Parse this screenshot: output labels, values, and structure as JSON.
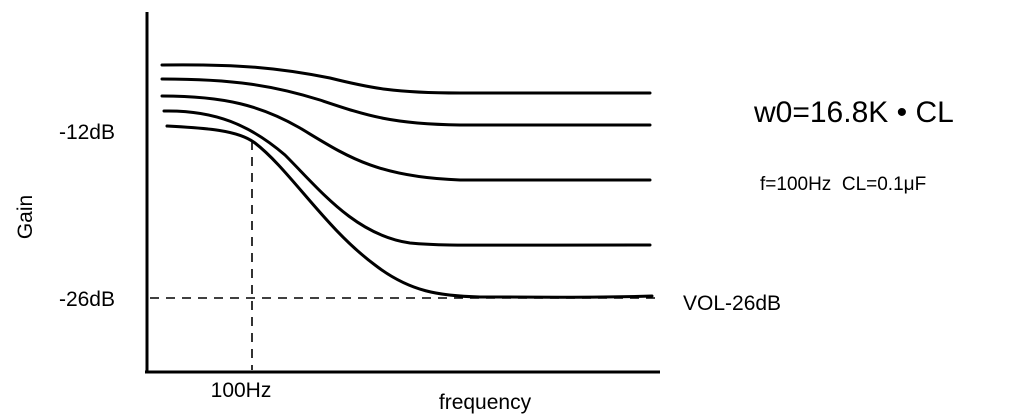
{
  "diagram": {
    "y_axis_label": "Gain",
    "x_axis_label": "frequency",
    "y_tick_high": "-12dB",
    "y_tick_low": "-26dB",
    "x_tick": "100Hz",
    "formula": "w0=16.8K • CL",
    "conditions": "f=100Hz  CL=0.1μF",
    "floor_label": "VOL-26dB"
  },
  "curves": [
    {
      "name": "gain-curve-1"
    },
    {
      "name": "gain-curve-2"
    },
    {
      "name": "gain-curve-3"
    },
    {
      "name": "gain-curve-4"
    },
    {
      "name": "gain-curve-5"
    }
  ],
  "colors": {
    "line": "#000000",
    "background": "#ffffff"
  }
}
